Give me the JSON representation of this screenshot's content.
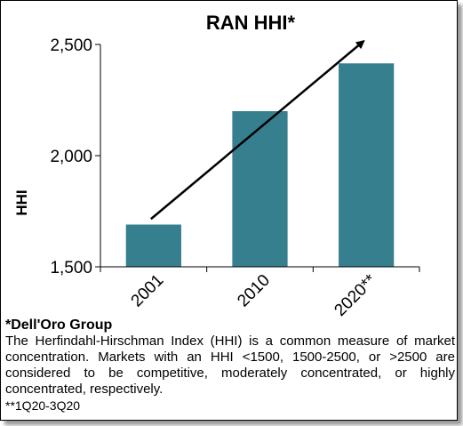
{
  "chart_data": {
    "type": "bar",
    "title": "RAN HHI*",
    "ylabel": "HHI",
    "xlabel": "",
    "categories": [
      "2001",
      "2010",
      "2020**"
    ],
    "values": [
      1690,
      2200,
      2415
    ],
    "ylim": [
      1500,
      2500
    ],
    "yticks": [
      1500,
      2000,
      2500
    ],
    "ytick_labels": [
      "1,500",
      "2,000",
      "2,500"
    ],
    "bar_color": "#367f8f",
    "grid": false,
    "annotations": [
      {
        "type": "trend-arrow",
        "from": {
          "category": "2001",
          "y": 1715
        },
        "to": {
          "category": "2020**",
          "y": 2515
        }
      }
    ]
  },
  "notes": {
    "source": "*Dell'Oro Group",
    "description": "The Herfindahl-Hirschman Index (HHI) is a common measure of market concentration. Markets with an HHI <1500, 1500-2500, or >2500 are considered to be competitive, moderately concentrated, or highly concentrated, respectively.",
    "footnote": "**1Q20-3Q20"
  }
}
